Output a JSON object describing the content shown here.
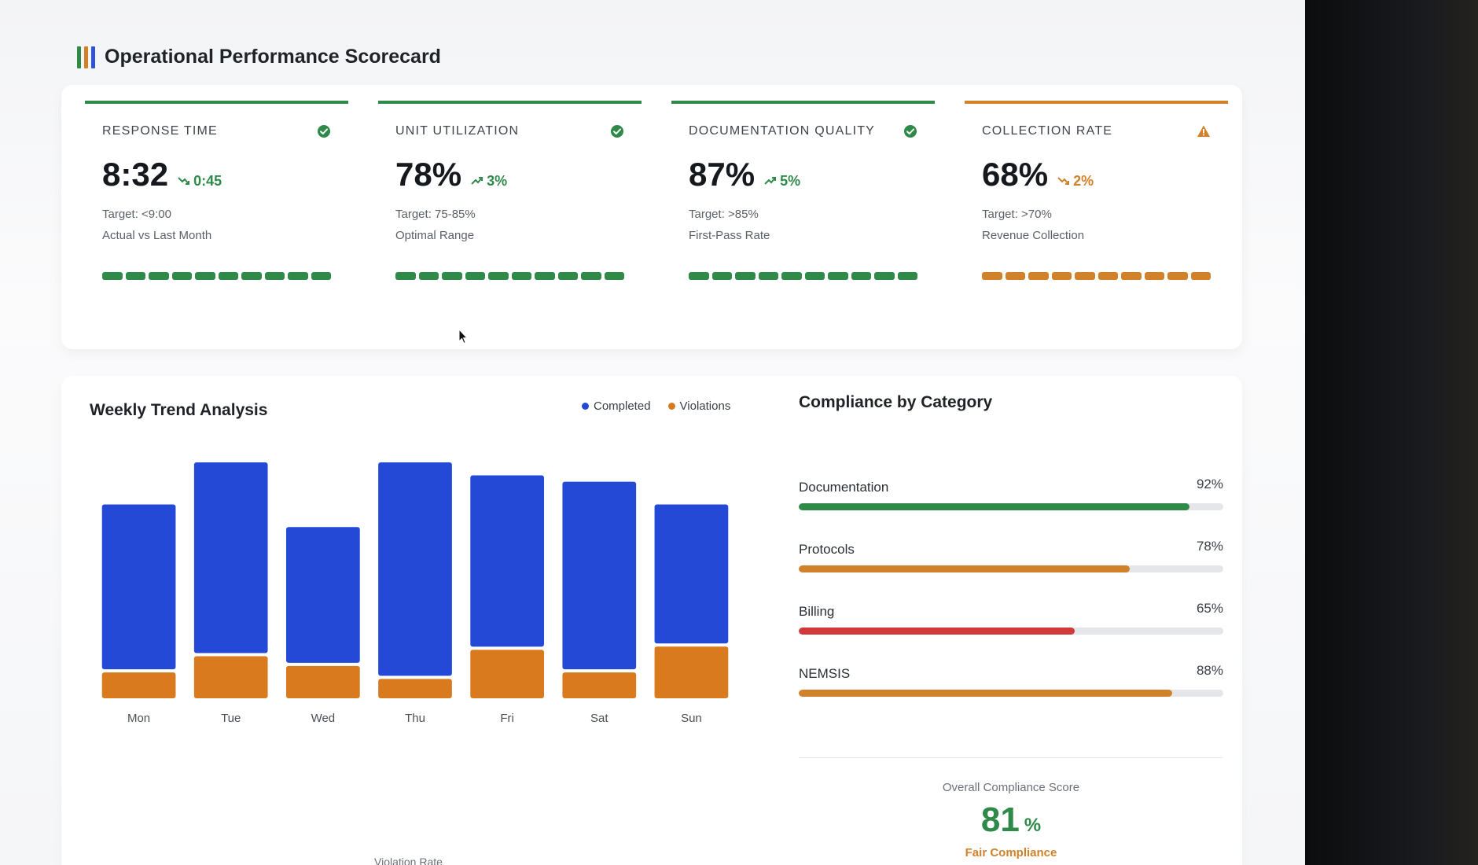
{
  "header": {
    "title": "Operational Performance Scorecard",
    "logo_colors": [
      "#2f8a4a",
      "#d0812a",
      "#2f55d4"
    ]
  },
  "kpis": [
    {
      "label": "RESPONSE TIME",
      "value": "8:32",
      "trend": "0:45",
      "trend_direction": "down",
      "target": "Target: <9:00",
      "sub": "Actual vs Last Month",
      "status": "ok",
      "status_icon": "check-circle-icon",
      "color": "#2f8a4a"
    },
    {
      "label": "UNIT UTILIZATION",
      "value": "78%",
      "trend": "3%",
      "trend_direction": "up",
      "target": "Target: 75-85%",
      "sub": "Optimal Range",
      "status": "ok",
      "status_icon": "check-circle-icon",
      "color": "#2f8a4a"
    },
    {
      "label": "DOCUMENTATION QUALITY",
      "value": "87%",
      "trend": "5%",
      "trend_direction": "up",
      "target": "Target: >85%",
      "sub": "First-Pass Rate",
      "status": "ok",
      "status_icon": "check-circle-icon",
      "color": "#2f8a4a"
    },
    {
      "label": "COLLECTION RATE",
      "value": "68%",
      "trend": "2%",
      "trend_direction": "down",
      "target": "Target: >70%",
      "sub": "Revenue Collection",
      "status": "warning",
      "status_icon": "warning-triangle-icon",
      "color": "#d0812a"
    }
  ],
  "weekly": {
    "title": "Weekly Trend Analysis",
    "legend": [
      {
        "name": "Completed",
        "color": "#2349d6"
      },
      {
        "name": "Violations",
        "color": "#d97a1e"
      }
    ],
    "violation_caption": "Violation Rate"
  },
  "chart_data": {
    "type": "bar",
    "stacked": true,
    "categories": [
      "Mon",
      "Tue",
      "Wed",
      "Thu",
      "Fri",
      "Sat",
      "Sun"
    ],
    "series": [
      {
        "name": "Completed",
        "values": [
          102,
          118,
          84,
          132,
          106,
          116,
          86
        ]
      },
      {
        "name": "Violations",
        "values": [
          16,
          26,
          20,
          12,
          30,
          16,
          32
        ]
      }
    ],
    "colors": [
      "#2349d6",
      "#d97a1e"
    ],
    "grid": false,
    "legend_position": "top-right"
  },
  "compliance": {
    "title": "Compliance by Category",
    "items": [
      {
        "label": "Documentation",
        "value": 92,
        "display": "92%",
        "color": "#2f8a4a"
      },
      {
        "label": "Protocols",
        "value": 78,
        "display": "78%",
        "color": "#d0812a"
      },
      {
        "label": "Billing",
        "value": 65,
        "display": "65%",
        "color": "#d03a3a"
      },
      {
        "label": "NEMSIS",
        "value": 88,
        "display": "88%",
        "color": "#d0812a"
      }
    ],
    "overall_label": "Overall Compliance Score",
    "overall_value": "81",
    "overall_unit": "%",
    "overall_status": "Fair Compliance"
  }
}
